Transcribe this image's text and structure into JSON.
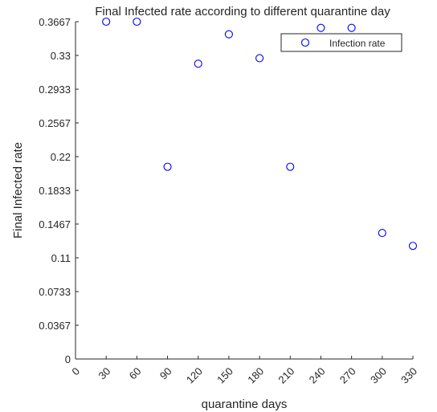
{
  "chart_data": {
    "type": "scatter",
    "title": "Final Infected rate according to different quarantine day",
    "xlabel": "quarantine days",
    "ylabel": "Final Infected rate",
    "xlim": [
      0,
      330
    ],
    "ylim": [
      0,
      0.3667
    ],
    "xticks": [
      "0",
      "30",
      "60",
      "90",
      "120",
      "150",
      "180",
      "210",
      "240",
      "270",
      "300",
      "330"
    ],
    "yticks": [
      "0",
      "0.0367",
      "0.0733",
      "0.11",
      "0.1467",
      "0.1833",
      "0.22",
      "0.2567",
      "0.2933",
      "0.33",
      "0.3667"
    ],
    "grid": false,
    "legend": "top-right",
    "series": [
      {
        "name": "Infection rate",
        "color": "#0000ff",
        "marker": "circle-open",
        "x": [
          30,
          60,
          90,
          120,
          150,
          180,
          210,
          240,
          270,
          300,
          330
        ],
        "y": [
          0.3667,
          0.3667,
          0.209,
          0.321,
          0.353,
          0.327,
          0.209,
          0.36,
          0.36,
          0.137,
          0.123
        ]
      }
    ]
  }
}
